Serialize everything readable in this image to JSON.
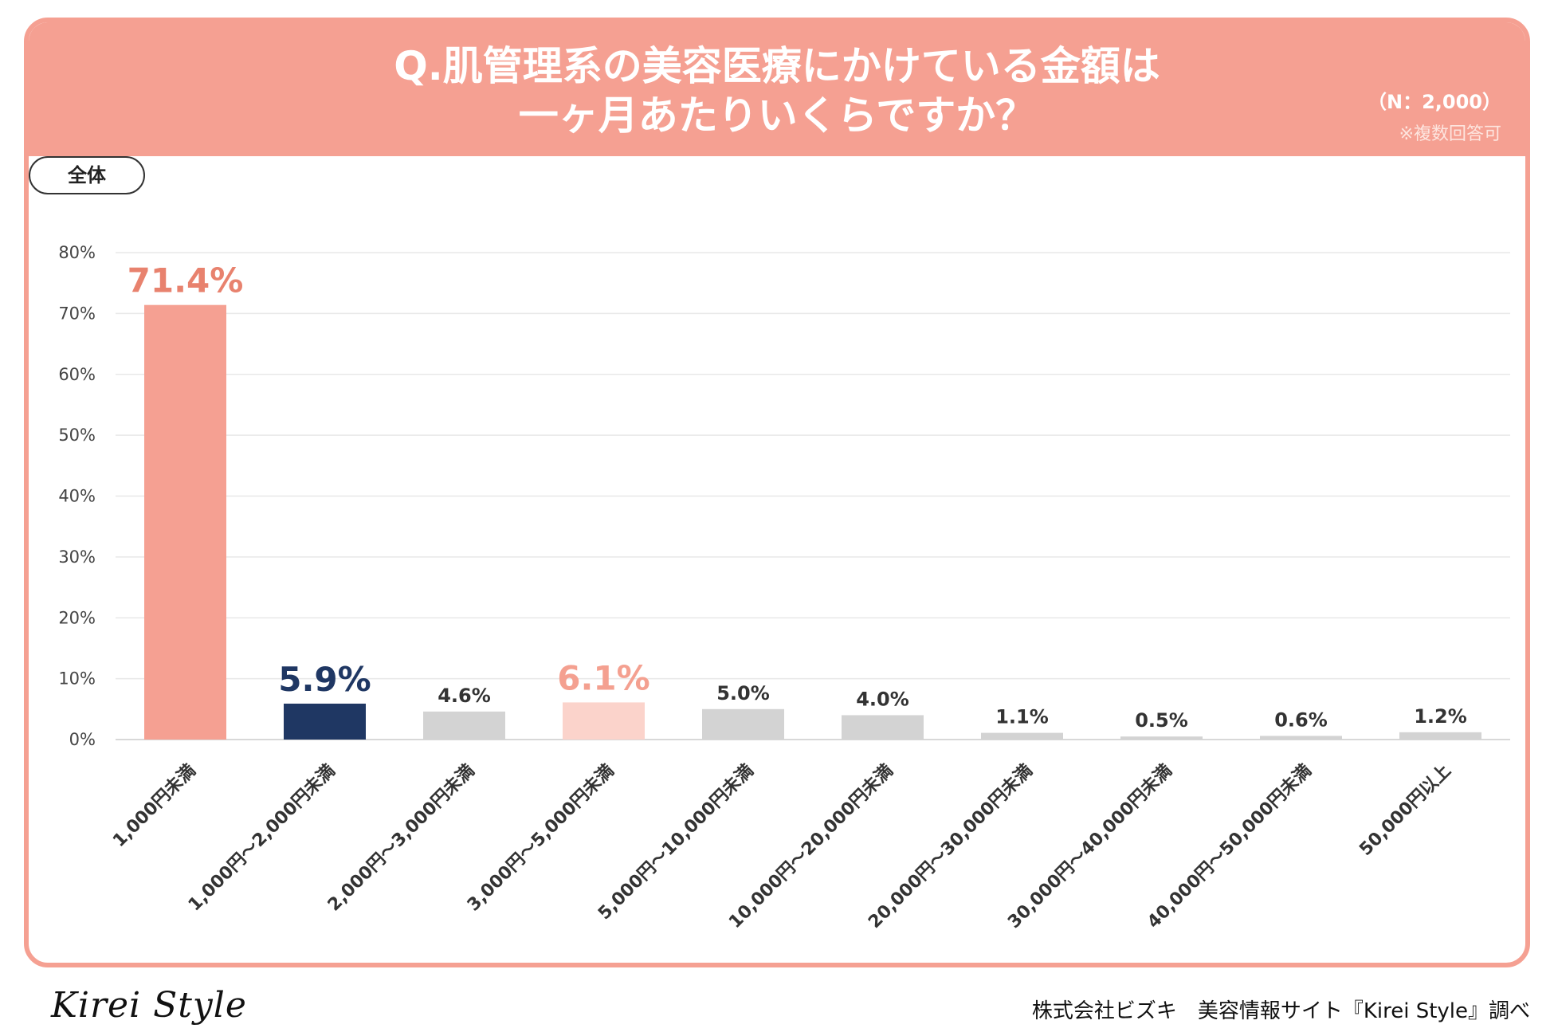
{
  "header": {
    "title_line1": "Q.肌管理系の美容医療にかけている金額は",
    "title_line2": "一ヶ月あたりいくらですか？",
    "n_label": "（N：2,000）",
    "note": "※複数回答可"
  },
  "segment_label": "全体",
  "footer": {
    "logo": "Kirei Style",
    "credit": "株式会社ビズキ　美容情報サイト『Kirei Style』調べ"
  },
  "colors": {
    "accent": "#f5a092",
    "highlight_dark": "#1f3763",
    "highlight_light": "#fbd3cb",
    "neutral_bar": "#d3d3d3",
    "label_accent": "#e8826e",
    "label_light": "#f4a090"
  },
  "chart_data": {
    "type": "bar",
    "title": "",
    "xlabel": "",
    "ylabel": "",
    "ylim": [
      0,
      80
    ],
    "y_ticks": [
      "0%",
      "10%",
      "20%",
      "30%",
      "40%",
      "50%",
      "60%",
      "70%",
      "80%"
    ],
    "grid": true,
    "categories": [
      "1,000円未満",
      "1,000円〜2,000円未満",
      "2,000円〜3,000円未満",
      "3,000円〜5,000円未満",
      "5,000円〜10,000円未満",
      "10,000円〜20,000円未満",
      "20,000円〜30,000円未満",
      "30,000円〜40,000円未満",
      "40,000円〜50,000円未満",
      "50,000円以上"
    ],
    "values": [
      71.4,
      5.9,
      4.6,
      6.1,
      5.0,
      4.0,
      1.1,
      0.5,
      0.6,
      1.2
    ],
    "value_labels": [
      "71.4%",
      "5.9%",
      "4.6%",
      "6.1%",
      "5.0%",
      "4.0%",
      "1.1%",
      "0.5%",
      "0.6%",
      "1.2%"
    ],
    "bar_styles": [
      "accent",
      "dark",
      "neutral",
      "light",
      "neutral",
      "neutral",
      "neutral",
      "neutral",
      "neutral",
      "neutral"
    ]
  }
}
